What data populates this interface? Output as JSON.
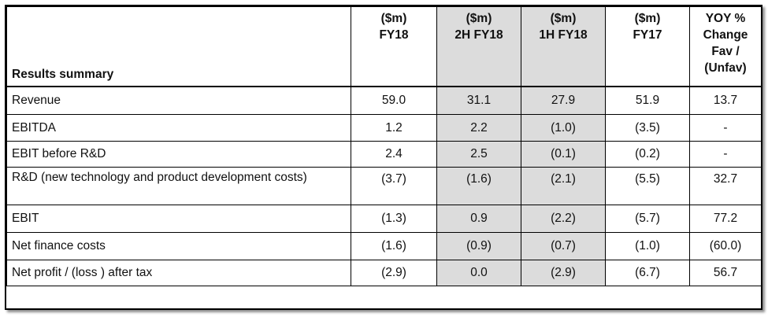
{
  "table": {
    "headers": [
      {
        "lines": [
          "Results summary"
        ]
      },
      {
        "lines": [
          "($m)",
          "FY18"
        ]
      },
      {
        "lines": [
          "($m)",
          "2H FY18"
        ]
      },
      {
        "lines": [
          "($m)",
          "1H FY18"
        ]
      },
      {
        "lines": [
          "($m)",
          "FY17"
        ]
      },
      {
        "lines": [
          "YOY %",
          "Change",
          "Fav /",
          "(Unfav)"
        ]
      }
    ],
    "rows": [
      {
        "label": "Revenue",
        "values": [
          "59.0",
          "31.1",
          "27.9",
          "51.9",
          "13.7"
        ]
      },
      {
        "label": "EBITDA",
        "values": [
          "1.2",
          "2.2",
          "(1.0)",
          "(3.5)",
          "-"
        ]
      },
      {
        "label": "EBIT before R&D",
        "values": [
          "2.4",
          "2.5",
          "(0.1)",
          "(0.2)",
          "-"
        ]
      },
      {
        "label": "R&D (new technology and product development costs)",
        "values": [
          "(3.7)",
          "(1.6)",
          "(2.1)",
          "(5.5)",
          "32.7"
        ]
      },
      {
        "label": "EBIT",
        "values": [
          "(1.3)",
          "0.9",
          "(2.2)",
          "(5.7)",
          "77.2"
        ]
      },
      {
        "label": "Net finance costs",
        "values": [
          "(1.6)",
          "(0.9)",
          "(0.7)",
          "(1.0)",
          "(60.0)"
        ]
      },
      {
        "label": "Net profit / (loss ) after tax",
        "values": [
          "(2.9)",
          "0.0",
          "(2.9)",
          "(6.7)",
          "56.7"
        ]
      }
    ]
  },
  "colors": {
    "shaded_column": "#dcdcdc",
    "border": "#000000"
  }
}
